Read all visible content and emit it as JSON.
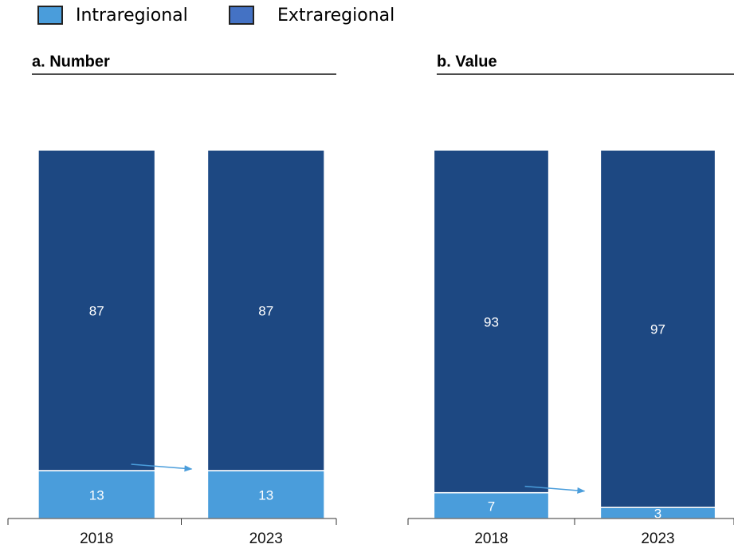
{
  "chart_data": [
    {
      "type": "bar",
      "stacked": true,
      "title": "a. Number",
      "categories": [
        "2018",
        "2023"
      ],
      "series": [
        {
          "name": "Intraregional",
          "color": "#4a9ddb",
          "values": [
            13,
            13
          ]
        },
        {
          "name": "Extraregional",
          "color": "#1d4882",
          "values": [
            87,
            87
          ]
        }
      ],
      "ylim": [
        0,
        100
      ]
    },
    {
      "type": "bar",
      "stacked": true,
      "title": "b. Value",
      "categories": [
        "2018",
        "2023"
      ],
      "series": [
        {
          "name": "Intraregional",
          "color": "#4a9ddb",
          "values": [
            7,
            3
          ]
        },
        {
          "name": "Extraregional",
          "color": "#1d4882",
          "values": [
            93,
            97
          ]
        }
      ],
      "ylim": [
        0,
        100
      ]
    }
  ]
}
